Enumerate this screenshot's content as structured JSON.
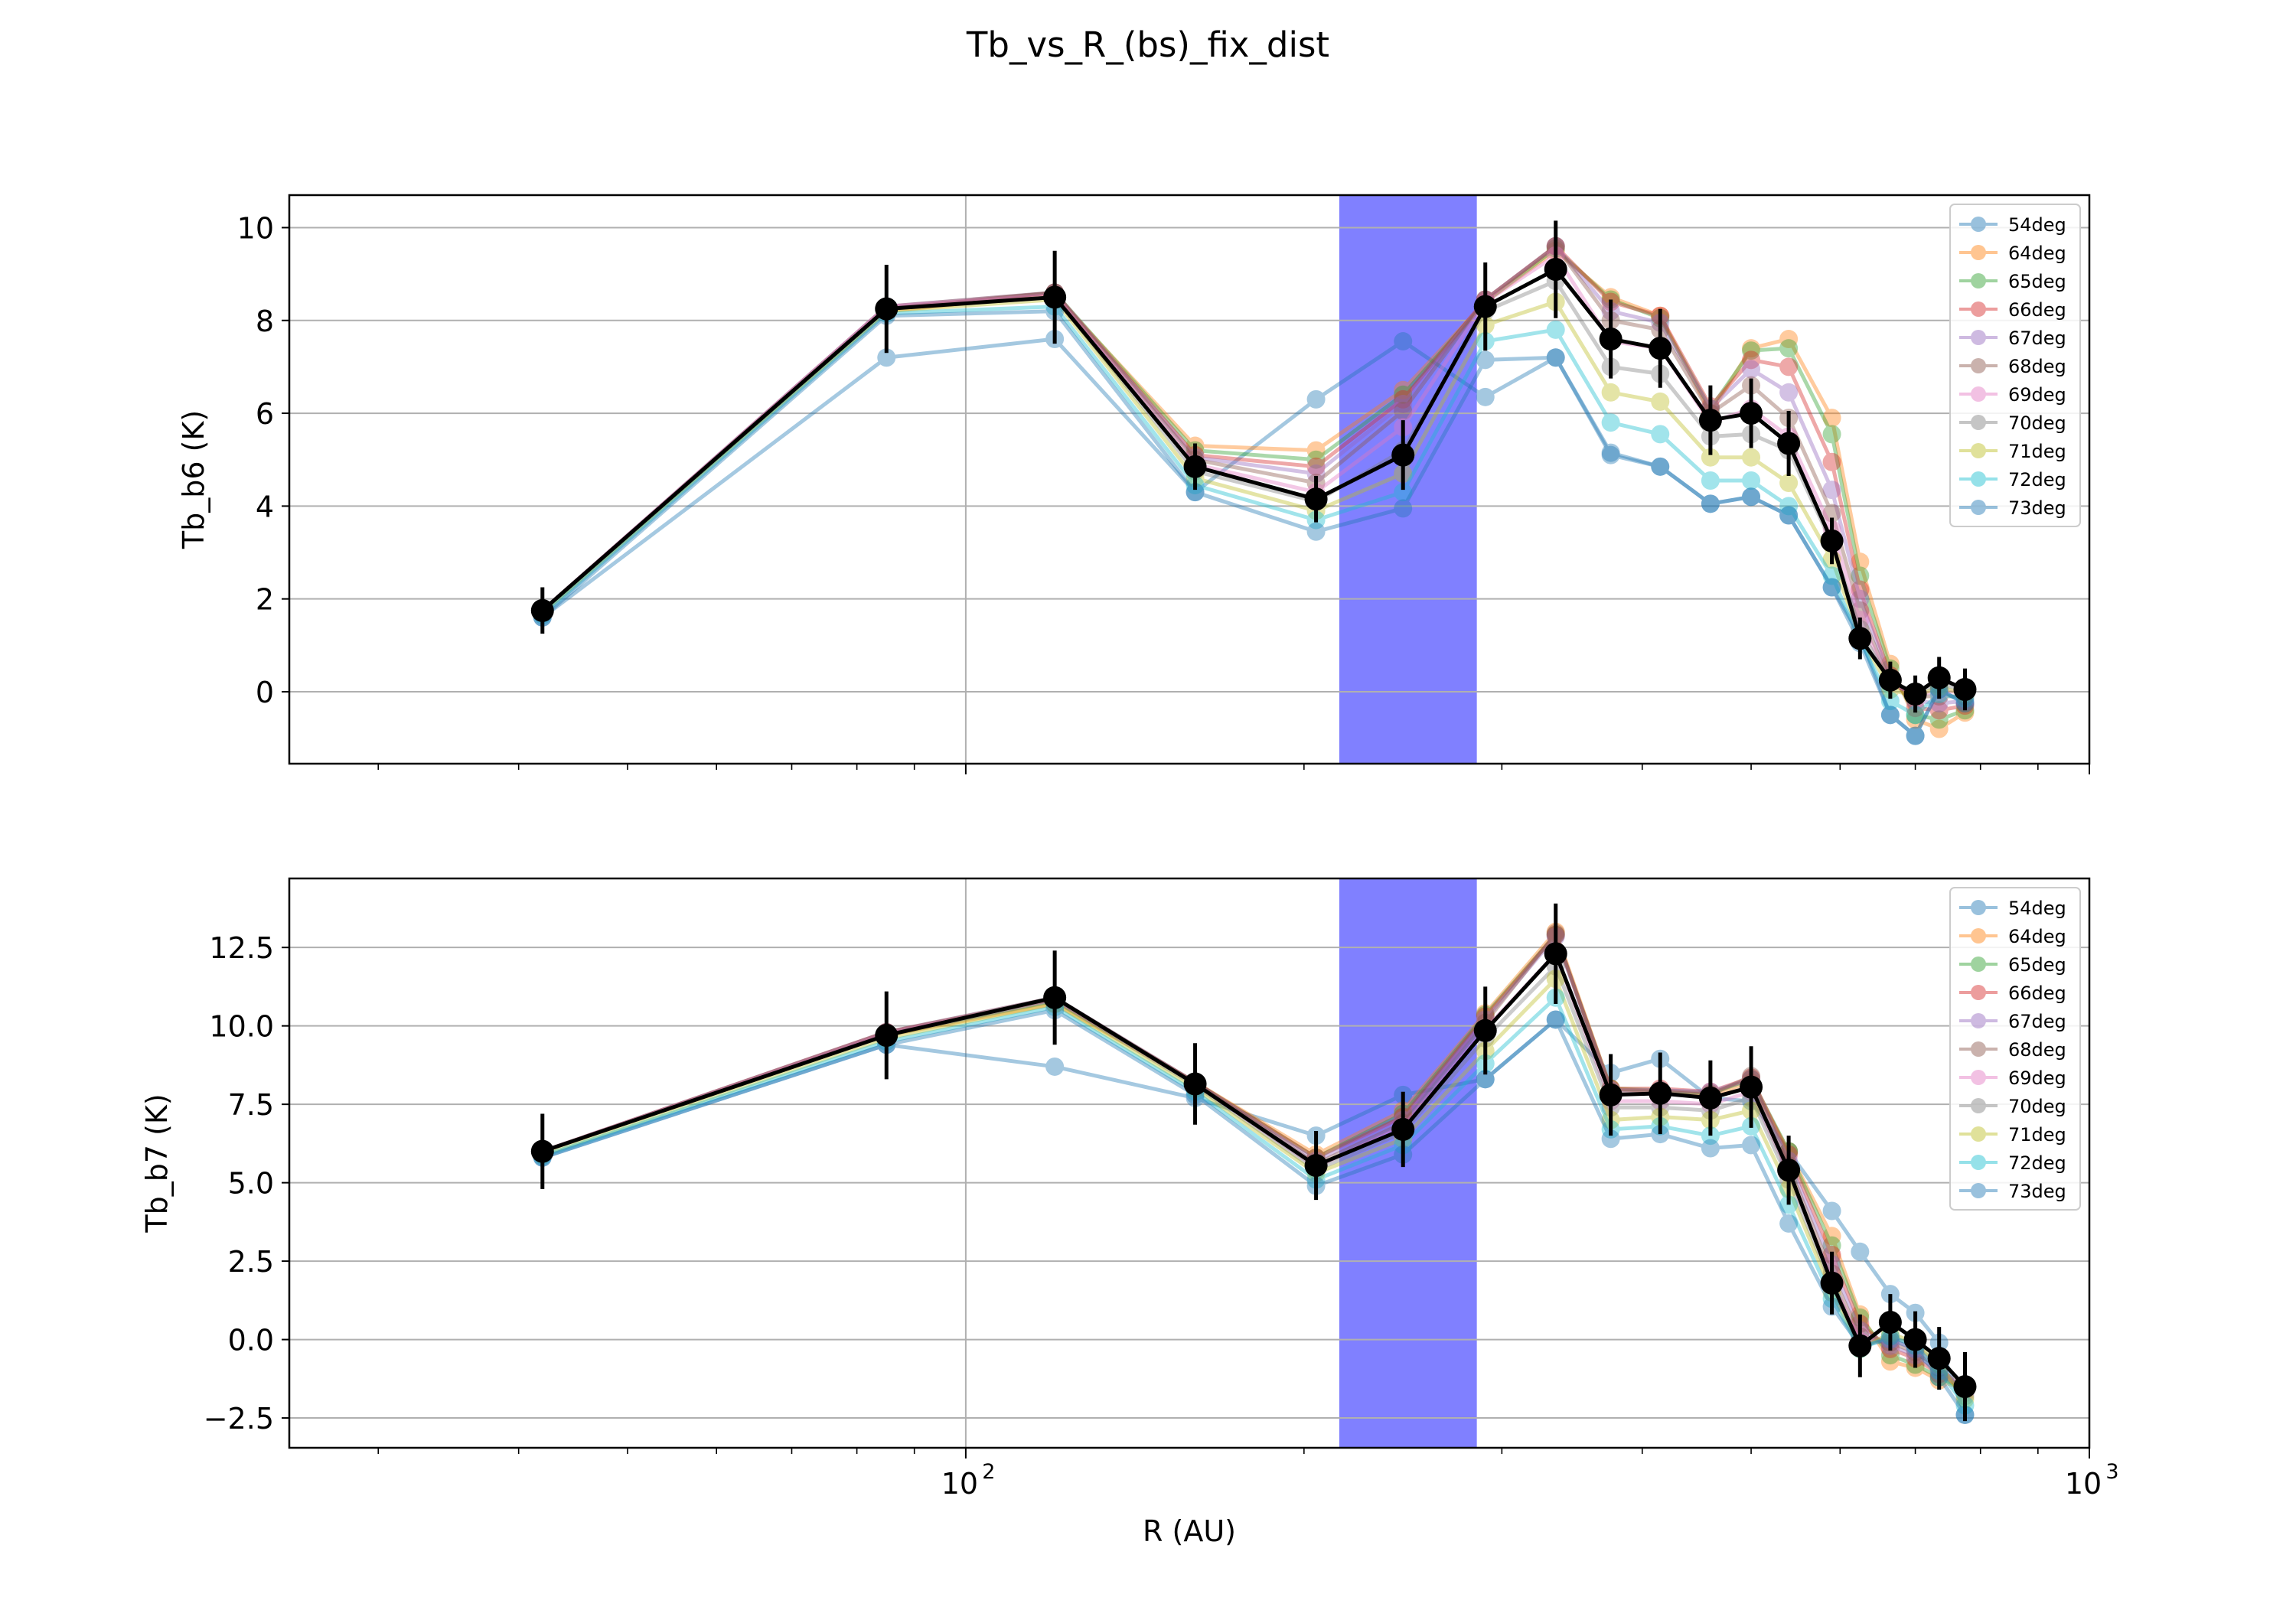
{
  "figure": {
    "title": "Tb_vs_R_(bs)_fix_dist"
  },
  "chart_data": [
    {
      "type": "line",
      "ylabel": "Tb_b6 (K)",
      "xlabel": "",
      "xscale": "log",
      "xlim": [
        25,
        1000
      ],
      "ylim": [
        -1.55,
        10.7
      ],
      "yticks": [
        "10",
        "8",
        "6",
        "4",
        "2",
        "0"
      ],
      "ytick_values": [
        10,
        8,
        6,
        4,
        2,
        0
      ],
      "xticks": [
        {
          "label": "10",
          "exp": "2",
          "value": 100
        },
        {
          "label": "10",
          "exp": "3",
          "value": 1000
        }
      ],
      "grid": true,
      "legend_position": "upper-right",
      "shaded_band": {
        "x0": 215,
        "x1": 285,
        "color": "#8080ff"
      },
      "x": [
        42,
        85,
        120,
        160,
        205,
        245,
        290,
        335,
        375,
        415,
        460,
        500,
        540,
        590,
        625,
        665,
        700,
        735,
        775
      ],
      "series": [
        {
          "name": "54deg",
          "color": "#1f77b4",
          "values": [
            1.6,
            7.2,
            7.6,
            4.3,
            6.3,
            7.55,
            6.35,
            7.2,
            5.15,
            4.85,
            4.05,
            4.2,
            3.8,
            2.25,
            1.2,
            -0.5,
            -0.95,
            0.05,
            -0.25
          ]
        },
        {
          "name": "64deg",
          "color": "#ff7f0e",
          "values": [
            1.75,
            8.2,
            8.55,
            5.3,
            5.2,
            6.5,
            8.4,
            9.5,
            8.5,
            8.1,
            6.0,
            7.4,
            7.6,
            5.9,
            2.8,
            0.6,
            -0.6,
            -0.8,
            -0.45
          ]
        },
        {
          "name": "65deg",
          "color": "#2ca02c",
          "values": [
            1.75,
            8.25,
            8.6,
            5.2,
            5.0,
            6.4,
            8.4,
            9.55,
            8.45,
            8.05,
            6.1,
            7.35,
            7.4,
            5.55,
            2.5,
            0.5,
            -0.5,
            -0.6,
            -0.4
          ]
        },
        {
          "name": "66deg",
          "color": "#d62728",
          "values": [
            1.75,
            8.25,
            8.6,
            5.1,
            4.85,
            6.3,
            8.45,
            9.6,
            8.4,
            8.1,
            6.15,
            7.15,
            7.0,
            4.95,
            2.2,
            0.35,
            -0.35,
            -0.4,
            -0.3
          ]
        },
        {
          "name": "67deg",
          "color": "#9467bd",
          "values": [
            1.75,
            8.3,
            8.6,
            5.05,
            4.7,
            6.2,
            8.45,
            9.6,
            8.2,
            7.95,
            6.1,
            6.95,
            6.45,
            4.35,
            2.0,
            0.3,
            -0.2,
            -0.25,
            -0.2
          ]
        },
        {
          "name": "68deg",
          "color": "#8c564b",
          "values": [
            1.75,
            8.3,
            8.6,
            5.0,
            4.5,
            6.05,
            8.45,
            9.6,
            8.0,
            7.8,
            6.0,
            6.6,
            5.9,
            3.85,
            1.75,
            0.2,
            -0.1,
            -0.1,
            -0.1
          ]
        },
        {
          "name": "69deg",
          "color": "#e377c2",
          "values": [
            1.75,
            8.3,
            8.55,
            4.9,
            4.3,
            5.7,
            8.4,
            9.4,
            7.55,
            7.4,
            5.8,
            6.1,
            5.5,
            3.5,
            1.55,
            0.2,
            -0.05,
            0.0,
            0.0
          ]
        },
        {
          "name": "70deg",
          "color": "#7f7f7f",
          "values": [
            1.7,
            8.25,
            8.5,
            4.75,
            4.1,
            5.2,
            8.2,
            8.85,
            7.0,
            6.85,
            5.5,
            5.55,
            5.2,
            3.2,
            1.35,
            0.2,
            0.0,
            0.15,
            0.05
          ]
        },
        {
          "name": "71deg",
          "color": "#bcbd22",
          "values": [
            1.7,
            8.2,
            8.45,
            4.6,
            3.9,
            4.7,
            7.9,
            8.4,
            6.45,
            6.25,
            5.05,
            5.05,
            4.5,
            2.85,
            1.2,
            0.05,
            -0.1,
            0.1,
            -0.05
          ]
        },
        {
          "name": "72deg",
          "color": "#17becf",
          "values": [
            1.65,
            8.15,
            8.3,
            4.45,
            3.7,
            4.3,
            7.55,
            7.8,
            5.8,
            5.55,
            4.55,
            4.55,
            4.0,
            2.5,
            1.1,
            -0.2,
            -0.5,
            -0.05,
            -0.15
          ]
        },
        {
          "name": "73deg",
          "color": "#1f77b4",
          "values": [
            1.6,
            8.1,
            8.2,
            4.3,
            3.45,
            3.95,
            7.15,
            7.2,
            5.1,
            4.85,
            4.05,
            4.2,
            3.8,
            2.25,
            1.05,
            -0.5,
            -0.95,
            0.05,
            -0.25
          ]
        }
      ],
      "mean": {
        "color": "#000000",
        "values": [
          1.75,
          8.25,
          8.5,
          4.85,
          4.15,
          5.1,
          8.3,
          9.1,
          7.6,
          7.4,
          5.85,
          6.0,
          5.35,
          3.25,
          1.15,
          0.25,
          -0.05,
          0.3,
          0.05
        ],
        "errors": [
          0.5,
          0.95,
          1.0,
          0.5,
          0.5,
          0.75,
          0.95,
          1.05,
          0.85,
          0.85,
          0.75,
          0.75,
          0.7,
          0.5,
          0.45,
          0.4,
          0.4,
          0.45,
          0.45
        ]
      }
    },
    {
      "type": "line",
      "ylabel": "Tb_b7 (K)",
      "xlabel": "R (AU)",
      "xscale": "log",
      "xlim": [
        25,
        1000
      ],
      "ylim": [
        -3.45,
        14.7
      ],
      "yticks": [
        "12.5",
        "10.0",
        "7.5",
        "5.0",
        "2.5",
        "0.0",
        "−2.5"
      ],
      "ytick_values": [
        12.5,
        10.0,
        7.5,
        5.0,
        2.5,
        0.0,
        -2.5
      ],
      "xticks": [
        {
          "label": "10",
          "exp": "2",
          "value": 100
        },
        {
          "label": "10",
          "exp": "3",
          "value": 1000
        }
      ],
      "grid": true,
      "legend_position": "upper-right",
      "shaded_band": {
        "x0": 215,
        "x1": 285,
        "color": "#8080ff"
      },
      "x": [
        42,
        85,
        120,
        160,
        205,
        245,
        290,
        335,
        375,
        415,
        460,
        500,
        540,
        590,
        625,
        665,
        700,
        735,
        775
      ],
      "series": [
        {
          "name": "54deg",
          "color": "#1f77b4",
          "values": [
            5.8,
            9.4,
            8.7,
            7.7,
            6.5,
            7.8,
            8.3,
            10.2,
            8.5,
            8.95,
            7.7,
            7.6,
            6.0,
            4.1,
            2.8,
            1.45,
            0.85,
            -0.1,
            -2.4
          ]
        },
        {
          "name": "64deg",
          "color": "#ff7f0e",
          "values": [
            6.0,
            9.7,
            10.7,
            8.2,
            5.9,
            7.3,
            10.4,
            13.0,
            8.0,
            7.9,
            7.8,
            8.2,
            6.0,
            3.3,
            0.8,
            -0.7,
            -0.9,
            -1.3,
            -1.6
          ]
        },
        {
          "name": "65deg",
          "color": "#2ca02c",
          "values": [
            6.0,
            9.75,
            10.8,
            8.2,
            5.8,
            7.2,
            10.35,
            12.9,
            8.0,
            7.95,
            7.85,
            8.3,
            6.0,
            3.0,
            0.7,
            -0.5,
            -0.8,
            -1.2,
            -1.6
          ]
        },
        {
          "name": "66deg",
          "color": "#d62728",
          "values": [
            6.0,
            9.8,
            10.85,
            8.2,
            5.8,
            7.1,
            10.3,
            12.9,
            8.0,
            8.0,
            7.9,
            8.35,
            5.9,
            2.7,
            0.5,
            -0.3,
            -0.6,
            -1.1,
            -1.6
          ]
        },
        {
          "name": "67deg",
          "color": "#9467bd",
          "values": [
            6.0,
            9.8,
            10.9,
            8.2,
            5.7,
            7.0,
            10.2,
            12.85,
            7.95,
            7.95,
            7.9,
            8.3,
            5.7,
            2.4,
            0.3,
            -0.2,
            -0.5,
            -1.0,
            -1.6
          ]
        },
        {
          "name": "68deg",
          "color": "#8c564b",
          "values": [
            6.0,
            9.8,
            10.9,
            8.2,
            5.6,
            6.9,
            10.1,
            12.95,
            7.9,
            7.9,
            7.8,
            8.4,
            5.55,
            2.1,
            0.1,
            -0.1,
            -0.4,
            -0.9,
            -1.6
          ]
        },
        {
          "name": "69deg",
          "color": "#e377c2",
          "values": [
            6.0,
            9.75,
            10.85,
            8.15,
            5.5,
            6.8,
            9.9,
            12.3,
            7.6,
            7.6,
            7.5,
            7.9,
            5.3,
            1.9,
            -0.05,
            0.0,
            -0.3,
            -0.85,
            -1.7
          ]
        },
        {
          "name": "70deg",
          "color": "#7f7f7f",
          "values": [
            6.0,
            9.7,
            10.8,
            8.1,
            5.4,
            6.6,
            9.6,
            11.9,
            7.4,
            7.4,
            7.3,
            7.7,
            5.1,
            1.7,
            -0.2,
            0.1,
            -0.2,
            -0.8,
            -1.8
          ]
        },
        {
          "name": "71deg",
          "color": "#bcbd22",
          "values": [
            5.9,
            9.6,
            10.7,
            8.0,
            5.3,
            6.4,
            9.2,
            11.5,
            7.0,
            7.1,
            7.0,
            7.3,
            4.8,
            1.5,
            -0.3,
            0.2,
            -0.1,
            -0.8,
            -1.9
          ]
        },
        {
          "name": "72deg",
          "color": "#17becf",
          "values": [
            5.85,
            9.5,
            10.6,
            7.9,
            5.1,
            6.2,
            8.8,
            10.9,
            6.7,
            6.8,
            6.5,
            6.8,
            4.3,
            1.3,
            -0.3,
            0.1,
            -0.2,
            -1.0,
            -2.1
          ]
        },
        {
          "name": "73deg",
          "color": "#1f77b4",
          "values": [
            5.8,
            9.4,
            10.5,
            7.8,
            4.9,
            5.9,
            8.3,
            10.2,
            6.4,
            6.55,
            6.1,
            6.2,
            3.7,
            1.05,
            -0.2,
            0.0,
            -0.3,
            -1.2,
            -2.4
          ]
        }
      ],
      "mean": {
        "color": "#000000",
        "values": [
          6.0,
          9.7,
          10.9,
          8.15,
          5.55,
          6.7,
          9.85,
          12.3,
          7.8,
          7.85,
          7.7,
          8.05,
          5.4,
          1.8,
          -0.2,
          0.55,
          0.0,
          -0.6,
          -1.5
        ],
        "errors": [
          1.2,
          1.4,
          1.5,
          1.3,
          1.1,
          1.2,
          1.4,
          1.6,
          1.3,
          1.3,
          1.2,
          1.3,
          1.1,
          1.0,
          1.0,
          0.9,
          0.9,
          1.0,
          1.1
        ]
      }
    }
  ]
}
